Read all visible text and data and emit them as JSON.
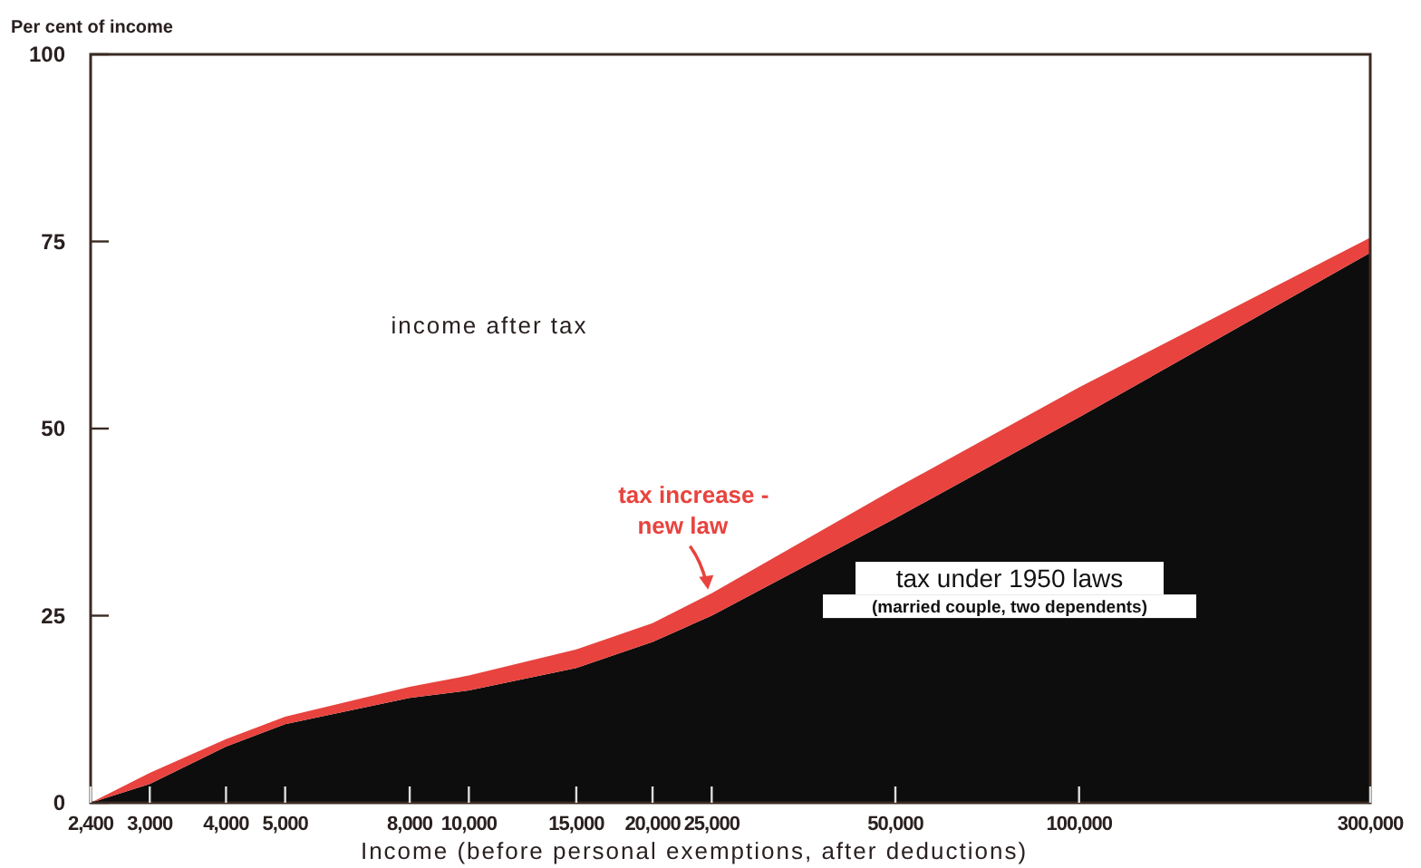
{
  "chart_data": {
    "type": "area",
    "stacked": true,
    "ylabel": "Per cent of income",
    "xlabel": "Income (before personal exemptions, after deductions)",
    "x": [
      2400,
      3000,
      4000,
      5000,
      8000,
      10000,
      15000,
      20000,
      25000,
      50000,
      100000,
      300000
    ],
    "log": "x",
    "xlim": [
      2400,
      300000
    ],
    "xticks": [
      {
        "value": 2400,
        "label": "2,400"
      },
      {
        "value": 3000,
        "label": "3,000"
      },
      {
        "value": 4000,
        "label": "4,000"
      },
      {
        "value": 5000,
        "label": "5,000"
      },
      {
        "value": 8000,
        "label": "8,000"
      },
      {
        "value": 10000,
        "label": "10,000"
      },
      {
        "value": 15000,
        "label": "15,000"
      },
      {
        "value": 20000,
        "label": "20,000"
      },
      {
        "value": 25000,
        "label": "25,000"
      },
      {
        "value": 50000,
        "label": "50,000"
      },
      {
        "value": 100000,
        "label": "100,000"
      },
      {
        "value": 300000,
        "label": "300,000"
      }
    ],
    "ylim": [
      0,
      100
    ],
    "yticks": [
      0,
      25,
      50,
      75,
      100
    ],
    "grid": false,
    "series": [
      {
        "name": "tax under 1950 laws",
        "color": "#0d0d0d",
        "values": [
          0,
          2.5,
          7.5,
          10.5,
          14,
          15,
          18,
          21.5,
          25,
          38,
          51.5,
          73.5
        ]
      },
      {
        "name": "tax increase -\nnew law",
        "color": "#e8433e",
        "values": [
          0,
          1.5,
          1,
          1,
          1.5,
          2,
          2.5,
          2.5,
          3,
          4,
          4,
          2
        ]
      }
    ],
    "annotations": [
      "income after tax",
      "(married couple, two dependents)"
    ]
  }
}
